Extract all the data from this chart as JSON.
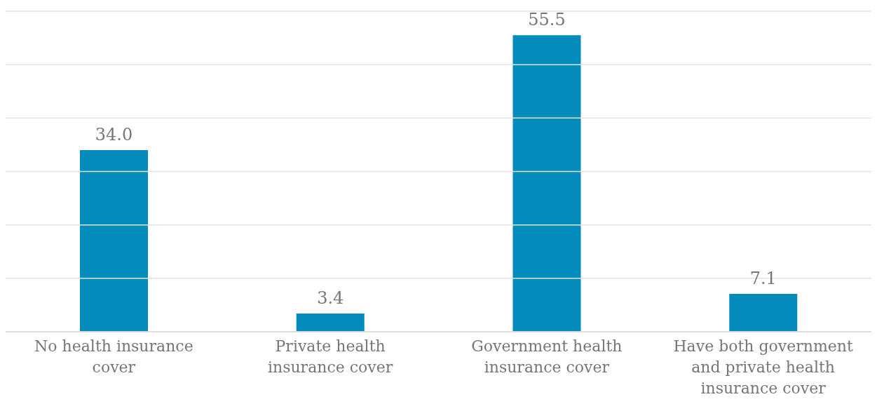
{
  "chart_data": {
    "type": "bar",
    "categories": [
      "No health insurance cover",
      "Private health insurance cover",
      "Government health insurance cover",
      "Have both government and private health insurance cover"
    ],
    "values": [
      34.0,
      3.4,
      55.5,
      7.1
    ],
    "value_labels": [
      "34.0",
      "3.4",
      "55.5",
      "7.1"
    ],
    "color": "#038bbb",
    "ylim": [
      0,
      60
    ],
    "yticks": [
      {
        "value": 0,
        "label": null
      },
      {
        "value": 10,
        "label": null
      },
      {
        "value": 20,
        "label": null
      },
      {
        "value": 30,
        "label": null
      },
      {
        "value": 40,
        "label": null
      },
      {
        "value": 50,
        "label": null
      },
      {
        "value": 60,
        "label": null
      }
    ],
    "grid": "y",
    "tick_labels": "x"
  }
}
